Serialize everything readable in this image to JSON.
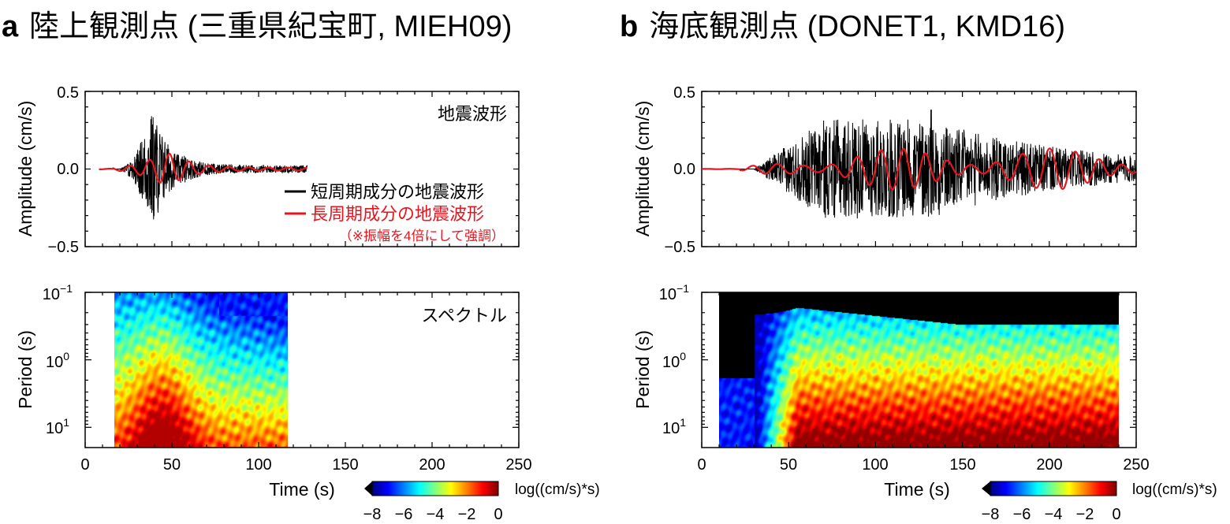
{
  "panels": [
    {
      "letter": "a",
      "title": "陸上観測点 (三重県紀宝町, MIEH09)",
      "waveform_label": "地震波形",
      "spectrum_label": "スペクトル",
      "legend": {
        "short_label": "短周期成分の地震波形",
        "long_label": "長周期成分の地震波形",
        "note": "（※振幅を4倍にして強調）",
        "short_color": "#000000",
        "long_color": "#e8141e"
      }
    },
    {
      "letter": "b",
      "title": "海底観測点 (DONET1, KMD16)",
      "waveform_label": "",
      "spectrum_label": ""
    }
  ],
  "axes": {
    "amplitude_label": "Amplitude (cm/s)",
    "period_label": "Period (s)",
    "time_label": "Time (s)",
    "amp_ticks": [
      "0.5",
      "0.0",
      "−0.5"
    ],
    "x_ticks": [
      "0",
      "50",
      "100",
      "150",
      "200",
      "250"
    ],
    "period_ticks": [
      {
        "base": "10",
        "exp": "−1"
      },
      {
        "base": "10",
        "exp": "0"
      },
      {
        "base": "10",
        "exp": "1"
      }
    ]
  },
  "colorbar": {
    "label": "log((cm/s)*s)",
    "ticks": [
      "−8",
      "−6",
      "−4",
      "−2",
      "0"
    ],
    "range": [
      -8,
      0
    ],
    "colormap": [
      "#00007f",
      "#0000ff",
      "#0080ff",
      "#00ffff",
      "#80ff80",
      "#ffff00",
      "#ff8000",
      "#ff0000",
      "#7f0000"
    ]
  },
  "chart_data": [
    {
      "type": "line",
      "panel": "a",
      "xlabel": "Time (s)",
      "ylabel": "Amplitude (cm/s)",
      "xlim": [
        0,
        250
      ],
      "ylim": [
        -0.5,
        0.5
      ],
      "series": [
        {
          "name": "短周期成分の地震波形",
          "color": "#000000",
          "x_range": [
            8,
            128
          ],
          "peak_time": 40,
          "max_amplitude": 0.35,
          "min_amplitude": -0.38
        },
        {
          "name": "長周期成分の地震波形",
          "color": "#e8141e",
          "x_range": [
            8,
            128
          ],
          "peak_time": 45,
          "max_amplitude": 0.1,
          "min_amplitude": -0.07
        }
      ]
    },
    {
      "type": "heatmap",
      "panel": "a",
      "xlabel": "Time (s)",
      "ylabel": "Period (s)",
      "xlim": [
        0,
        250
      ],
      "ylim_log10": [
        -1,
        1.3
      ],
      "x_range": [
        18,
        116
      ],
      "zlim": [
        -8,
        0
      ]
    },
    {
      "type": "line",
      "panel": "b",
      "xlabel": "Time (s)",
      "ylabel": "Amplitude (cm/s)",
      "xlim": [
        0,
        250
      ],
      "ylim": [
        -0.5,
        0.5
      ],
      "series": [
        {
          "name": "短周期成分の地震波形",
          "color": "#000000",
          "x_range": [
            0,
            250
          ],
          "peak_time": 132,
          "max_amplitude": 0.38,
          "min_amplitude": -0.35
        },
        {
          "name": "長周期成分の地震波形",
          "color": "#e8141e",
          "x_range": [
            0,
            250
          ],
          "peak_time": 185,
          "max_amplitude": 0.14,
          "min_amplitude": -0.14
        }
      ]
    },
    {
      "type": "heatmap",
      "panel": "b",
      "xlabel": "Time (s)",
      "ylabel": "Period (s)",
      "xlim": [
        0,
        250
      ],
      "ylim_log10": [
        -1,
        1.3
      ],
      "x_range": [
        10,
        240
      ],
      "zlim": [
        -8,
        0
      ]
    }
  ]
}
